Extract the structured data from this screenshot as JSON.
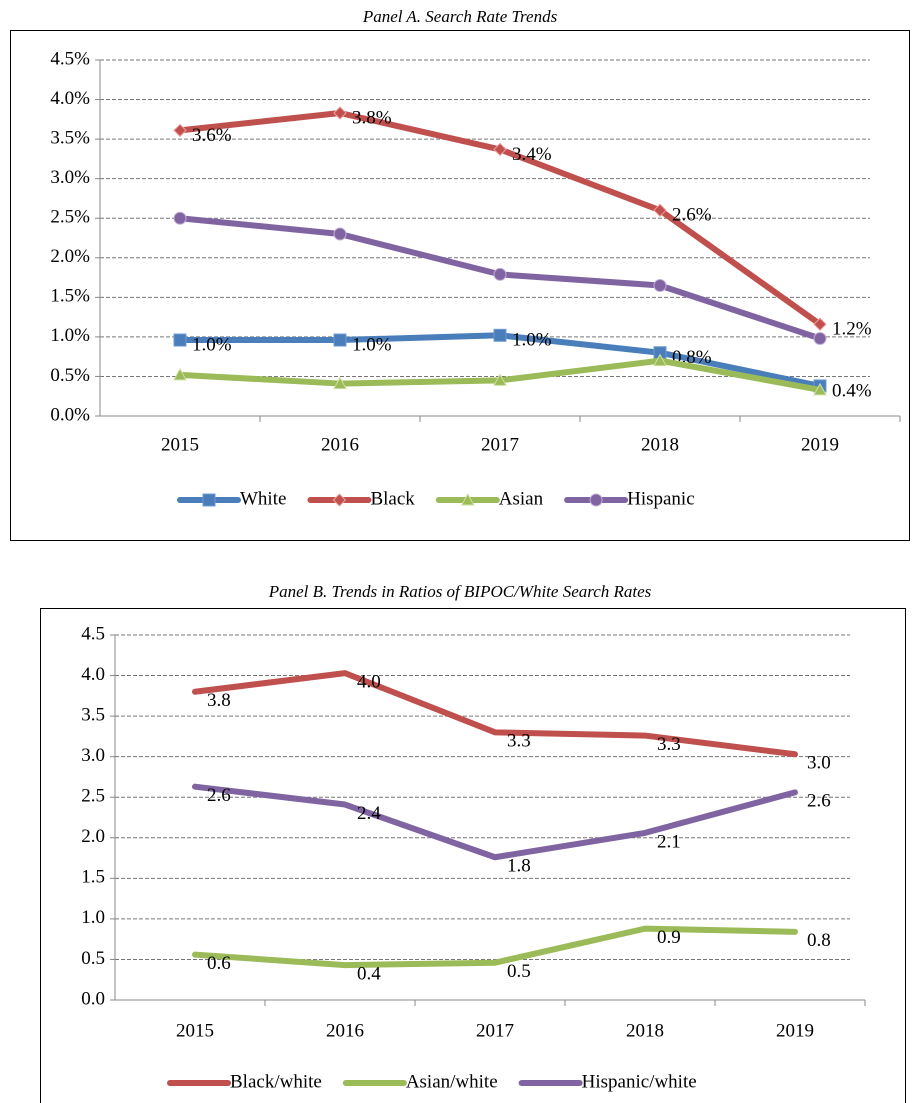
{
  "chart_data": [
    {
      "type": "line",
      "title": "Panel A. Search Rate Trends",
      "categories": [
        "2015",
        "2016",
        "2017",
        "2018",
        "2019"
      ],
      "ylim": [
        0,
        4.5
      ],
      "yticks": [
        {
          "value": 0,
          "label": "0.0%"
        },
        {
          "value": 0.5,
          "label": "0.5%"
        },
        {
          "value": 1,
          "label": "1.0%"
        },
        {
          "value": 1.5,
          "label": "1.5%"
        },
        {
          "value": 2,
          "label": "2.0%"
        },
        {
          "value": 2.5,
          "label": "2.5%"
        },
        {
          "value": 3,
          "label": "3.0%"
        },
        {
          "value": 3.5,
          "label": "3.5%"
        },
        {
          "value": 4,
          "label": "4.0%"
        },
        {
          "value": 4.5,
          "label": "4.5%"
        }
      ],
      "grid": true,
      "legend": "bottom",
      "series": [
        {
          "name": "White",
          "color": "#4a7ebb",
          "marker": "square",
          "values": [
            0.96,
            0.96,
            1.02,
            0.8,
            0.38
          ],
          "value_labels": [
            "1.0%",
            "1.0%",
            "1.0%",
            "0.8%",
            "0.4%"
          ]
        },
        {
          "name": "Black",
          "color": "#c0504d",
          "marker": "diamond",
          "values": [
            3.61,
            3.83,
            3.37,
            2.6,
            1.16
          ],
          "value_labels": [
            "3.6%",
            "3.8%",
            "3.4%",
            "2.6%",
            "1.2%"
          ]
        },
        {
          "name": "Asian",
          "color": "#9bbb59",
          "marker": "triangle",
          "values": [
            0.52,
            0.41,
            0.45,
            0.7,
            0.33
          ]
        },
        {
          "name": "Hispanic",
          "color": "#8064a2",
          "marker": "circle",
          "values": [
            2.5,
            2.3,
            1.79,
            1.65,
            0.98
          ]
        }
      ]
    },
    {
      "type": "line",
      "title": "Panel B. Trends in Ratios of BIPOC/White Search Rates",
      "categories": [
        "2015",
        "2016",
        "2017",
        "2018",
        "2019"
      ],
      "ylim": [
        0,
        4.5
      ],
      "yticks": [
        {
          "value": 0,
          "label": "0.0"
        },
        0.5,
        {
          "value": 1,
          "label": "1.0"
        },
        1.5,
        {
          "value": 2,
          "label": "2.0"
        },
        2.5,
        {
          "value": 3,
          "label": "3.0"
        },
        3.5,
        {
          "value": 4,
          "label": "4.0"
        },
        4.5
      ],
      "grid": true,
      "legend": "bottom",
      "series": [
        {
          "name": "Black/white",
          "color": "#c0504d",
          "values": [
            3.8,
            4.03,
            3.3,
            3.26,
            3.03
          ],
          "value_labels": [
            "3.8",
            "4.0",
            "3.3",
            "3.3",
            "3.0"
          ]
        },
        {
          "name": "Asian/white",
          "color": "#9bbb59",
          "values": [
            0.56,
            0.43,
            0.46,
            0.88,
            0.84
          ],
          "value_labels": [
            "0.6",
            "0.4",
            "0.5",
            "0.9",
            "0.8"
          ]
        },
        {
          "name": "Hispanic/white",
          "color": "#8064a2",
          "values": [
            2.63,
            2.41,
            1.76,
            2.06,
            2.56
          ],
          "value_labels": [
            "2.6",
            "2.4",
            "1.8",
            "2.1",
            "2.6"
          ]
        }
      ]
    }
  ]
}
